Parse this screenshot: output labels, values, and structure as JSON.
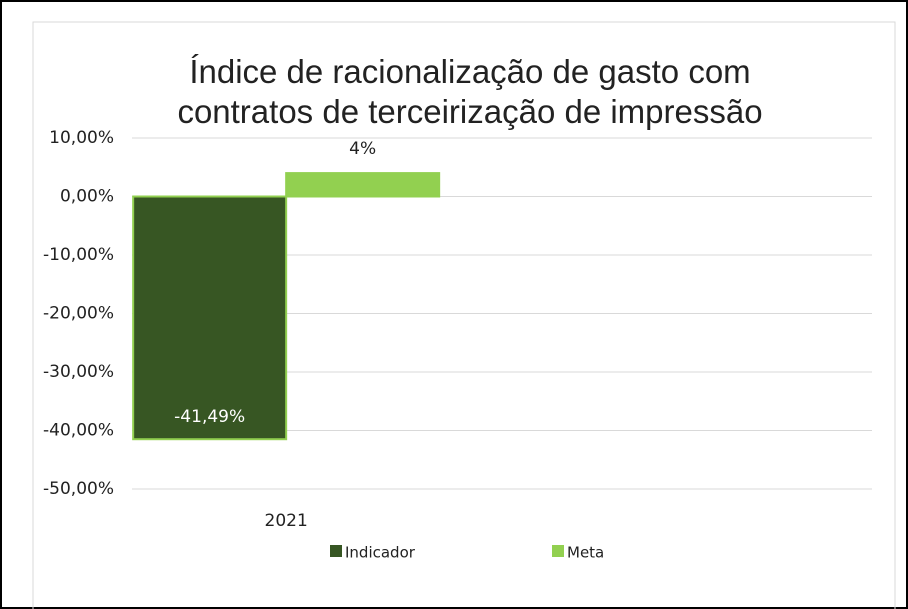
{
  "chart_data": {
    "type": "bar",
    "title": "Índice de racionalização de gasto com contratos de terceirização de impressão",
    "categories": [
      "2021"
    ],
    "series": [
      {
        "name": "Indicador",
        "color": "#375623",
        "values": [
          -41.49
        ],
        "value_labels": [
          "-41,49%"
        ]
      },
      {
        "name": "Meta",
        "color": "#92d050",
        "values": [
          4
        ],
        "value_labels": [
          "4%"
        ]
      }
    ],
    "ylim": [
      -50,
      10
    ],
    "yticks": [
      {
        "value": 10,
        "label": "10,00%"
      },
      {
        "value": 0,
        "label": "0,00%"
      },
      {
        "value": -10,
        "label": "-10,00%"
      },
      {
        "value": -20,
        "label": "-20,00%"
      },
      {
        "value": -30,
        "label": "-30,00%"
      },
      {
        "value": -40,
        "label": "-40,00%"
      },
      {
        "value": -50,
        "label": "-50,00%"
      }
    ],
    "grid": true,
    "legend": "bottom"
  }
}
